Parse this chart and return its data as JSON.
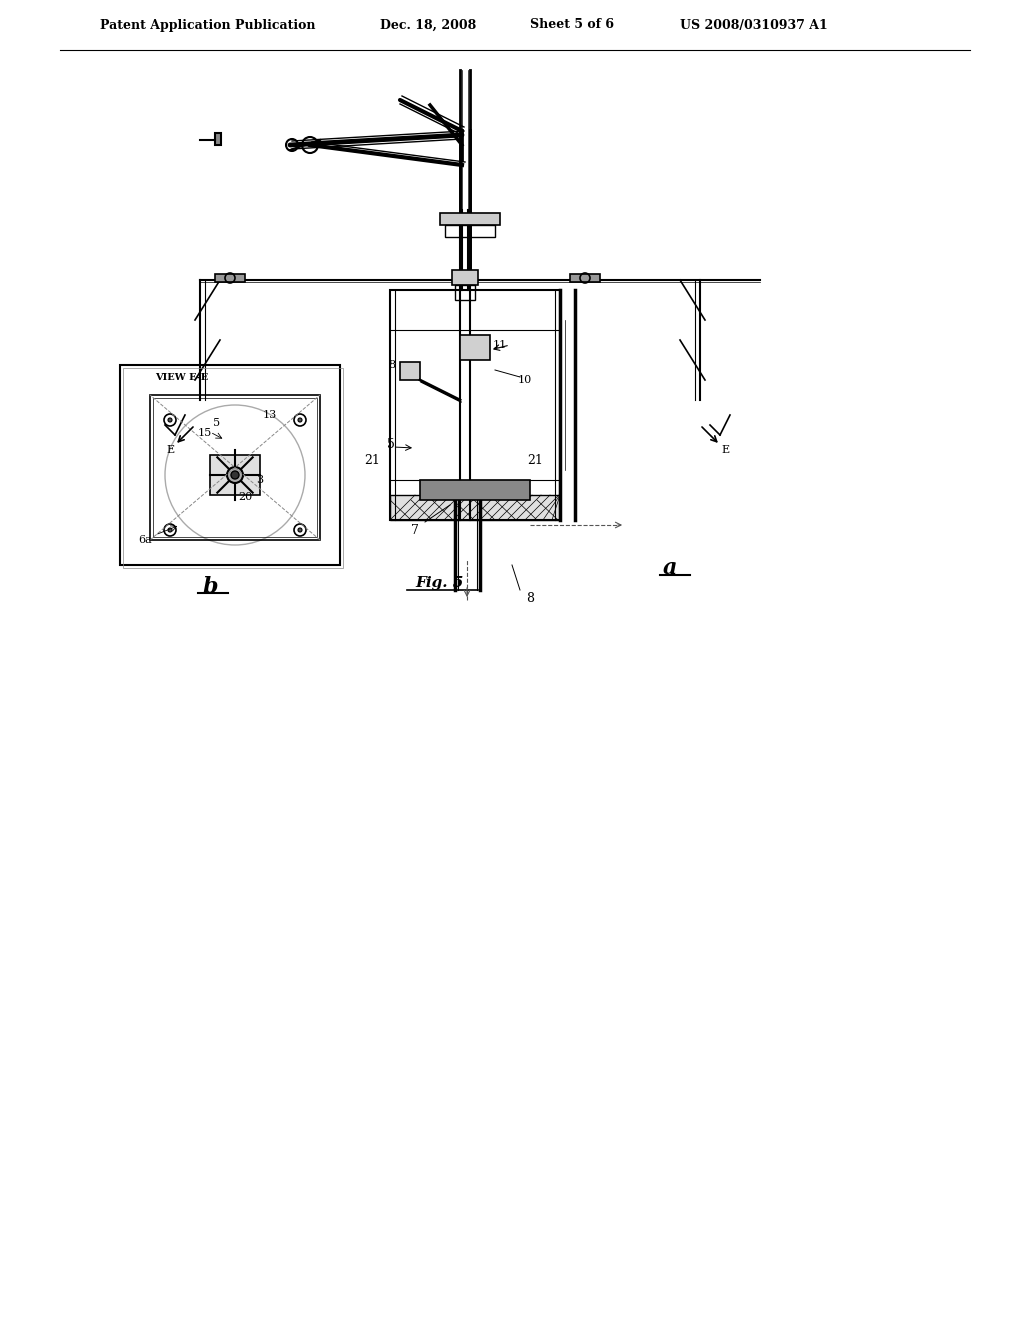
{
  "bg_color": "#ffffff",
  "header_text": "Patent Application Publication",
  "header_date": "Dec. 18, 2008",
  "header_sheet": "Sheet 5 of 6",
  "header_patent": "US 2008/0310937 A1",
  "fig_label": "Fig. 5",
  "label_a": "a",
  "label_b": "b",
  "line_color": "#000000",
  "light_line_color": "#888888",
  "hatch_color": "#000000"
}
